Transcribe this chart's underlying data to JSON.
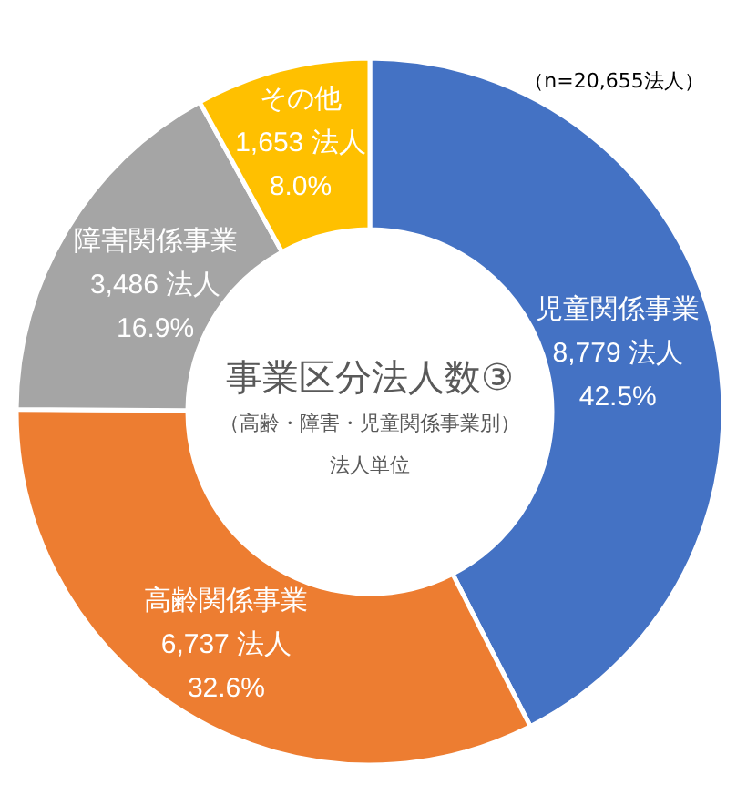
{
  "chart_data": {
    "type": "donut",
    "title": "事業区分法人数③",
    "subtitle": "（高齢・障害・児童関係事業別）",
    "annotations": [
      "法人単位",
      "（n=20,655法人）"
    ],
    "categories": [
      "児童関係事業",
      "高齢関係事業",
      "障害関係事業",
      "その他"
    ],
    "values": [
      42.5,
      32.6,
      16.9,
      8.0
    ],
    "value_labels": [
      "8,779 法人\n42.5%",
      "6,737 法人\n32.6%",
      "3,486 法人\n16.9%",
      "1,653 法人\n8.0%"
    ],
    "colors": [
      "#4472c4",
      "#ed7d31",
      "#a5a5a5",
      "#ffc000"
    ]
  }
}
